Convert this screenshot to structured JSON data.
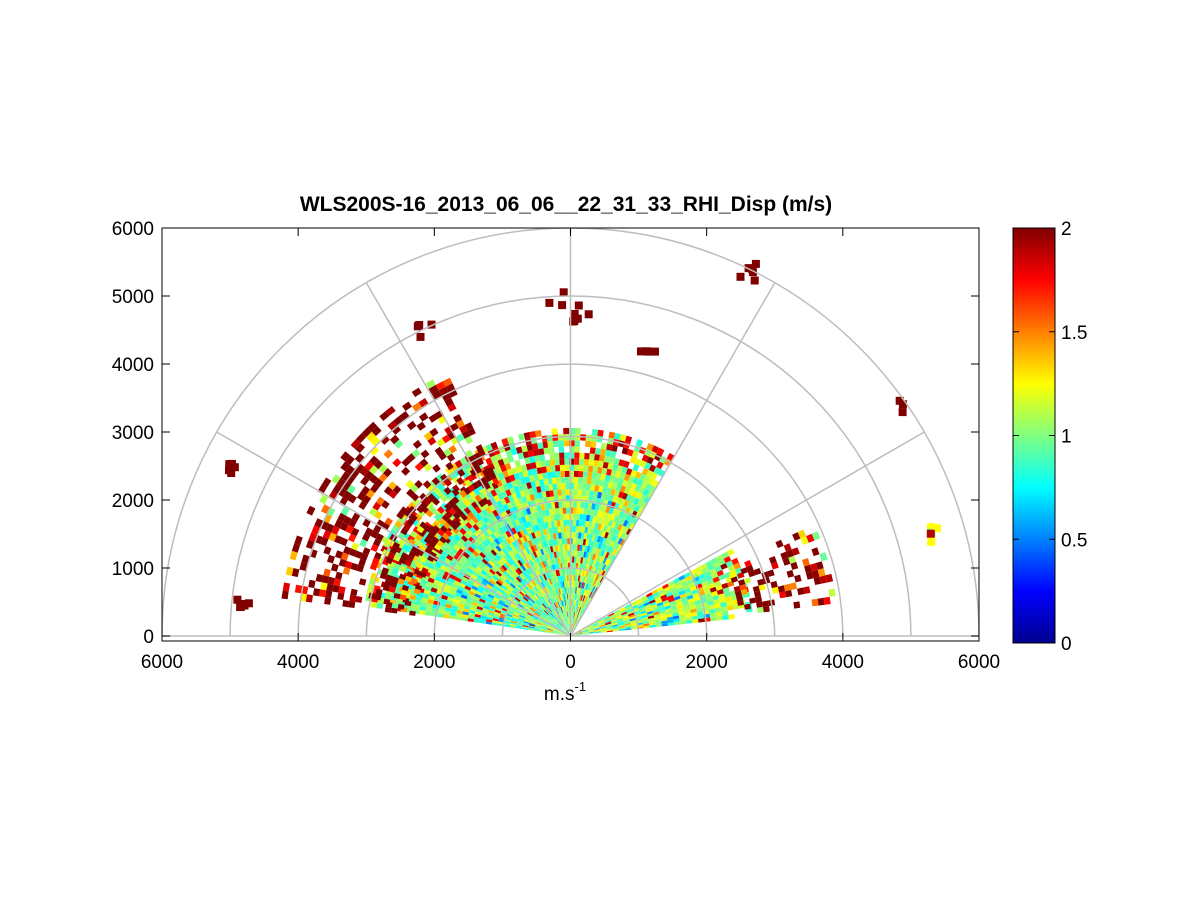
{
  "chart_data": {
    "type": "heatmap",
    "subtype": "polar-RHI",
    "title": "WLS200S-16_2013_06_06__22_31_33_RHI_Disp (m/s)",
    "xlabel": "m.s",
    "xlabel_sup": "-1",
    "ylabel": "",
    "xlim": [
      -6000,
      6000
    ],
    "ylim": [
      0,
      6000
    ],
    "x_ticks": [
      -6000,
      -4000,
      -2000,
      0,
      2000,
      4000,
      6000
    ],
    "x_tick_labels": [
      "6000",
      "4000",
      "2000",
      "0",
      "2000",
      "4000",
      "6000"
    ],
    "y_ticks": [
      0,
      1000,
      2000,
      3000,
      4000,
      5000,
      6000
    ],
    "y_tick_labels": [
      "0",
      "1000",
      "2000",
      "3000",
      "4000",
      "5000",
      "6000"
    ],
    "polar_grid": {
      "range_rings": [
        1000,
        2000,
        3000,
        4000,
        5000,
        6000
      ],
      "spoke_angles_deg": [
        0,
        30,
        60,
        90,
        120,
        150,
        180
      ]
    },
    "colorbar": {
      "colormap": "jet",
      "min": 0,
      "max": 2,
      "ticks": [
        0,
        0.5,
        1,
        1.5,
        2
      ],
      "tick_labels": [
        "0",
        "0.5",
        "1",
        "1.5",
        "2"
      ]
    },
    "sectors": [
      {
        "name": "left-main",
        "angle_start_deg": 95,
        "angle_end_deg": 171,
        "range_start_m": 0,
        "range_end_m": 3000,
        "typical_value": 0.95
      },
      {
        "name": "left-outer",
        "angle_start_deg": 115,
        "angle_end_deg": 172,
        "range_start_m": 2300,
        "range_end_m": 4200,
        "typical_value": 1.9
      },
      {
        "name": "center-top",
        "angle_start_deg": 60,
        "angle_end_deg": 96,
        "range_start_m": 0,
        "range_end_m": 3000,
        "typical_value": 1.0
      },
      {
        "name": "right-low",
        "angle_start_deg": 6,
        "angle_end_deg": 28,
        "range_start_m": 0,
        "range_end_m": 2700,
        "typical_value": 1.0
      },
      {
        "name": "right-outer",
        "angle_start_deg": 7,
        "angle_end_deg": 24,
        "range_start_m": 2500,
        "range_end_m": 3900,
        "typical_value": 1.9
      }
    ],
    "isolated_patches": [
      {
        "x": 5300,
        "y": 1500,
        "value": 1.3
      },
      {
        "x": 4950,
        "y": 3350,
        "value": 2.0
      },
      {
        "x": 2600,
        "y": 5350,
        "value": 2.0
      },
      {
        "x": -200,
        "y": 4950,
        "value": 2.0
      },
      {
        "x": 150,
        "y": 4750,
        "value": 2.0
      },
      {
        "x": 1150,
        "y": 4150,
        "value": 2.0
      },
      {
        "x": -2150,
        "y": 4450,
        "value": 2.0
      },
      {
        "x": -5000,
        "y": 2450,
        "value": 2.0
      },
      {
        "x": -4800,
        "y": 550,
        "value": 2.0
      }
    ]
  }
}
